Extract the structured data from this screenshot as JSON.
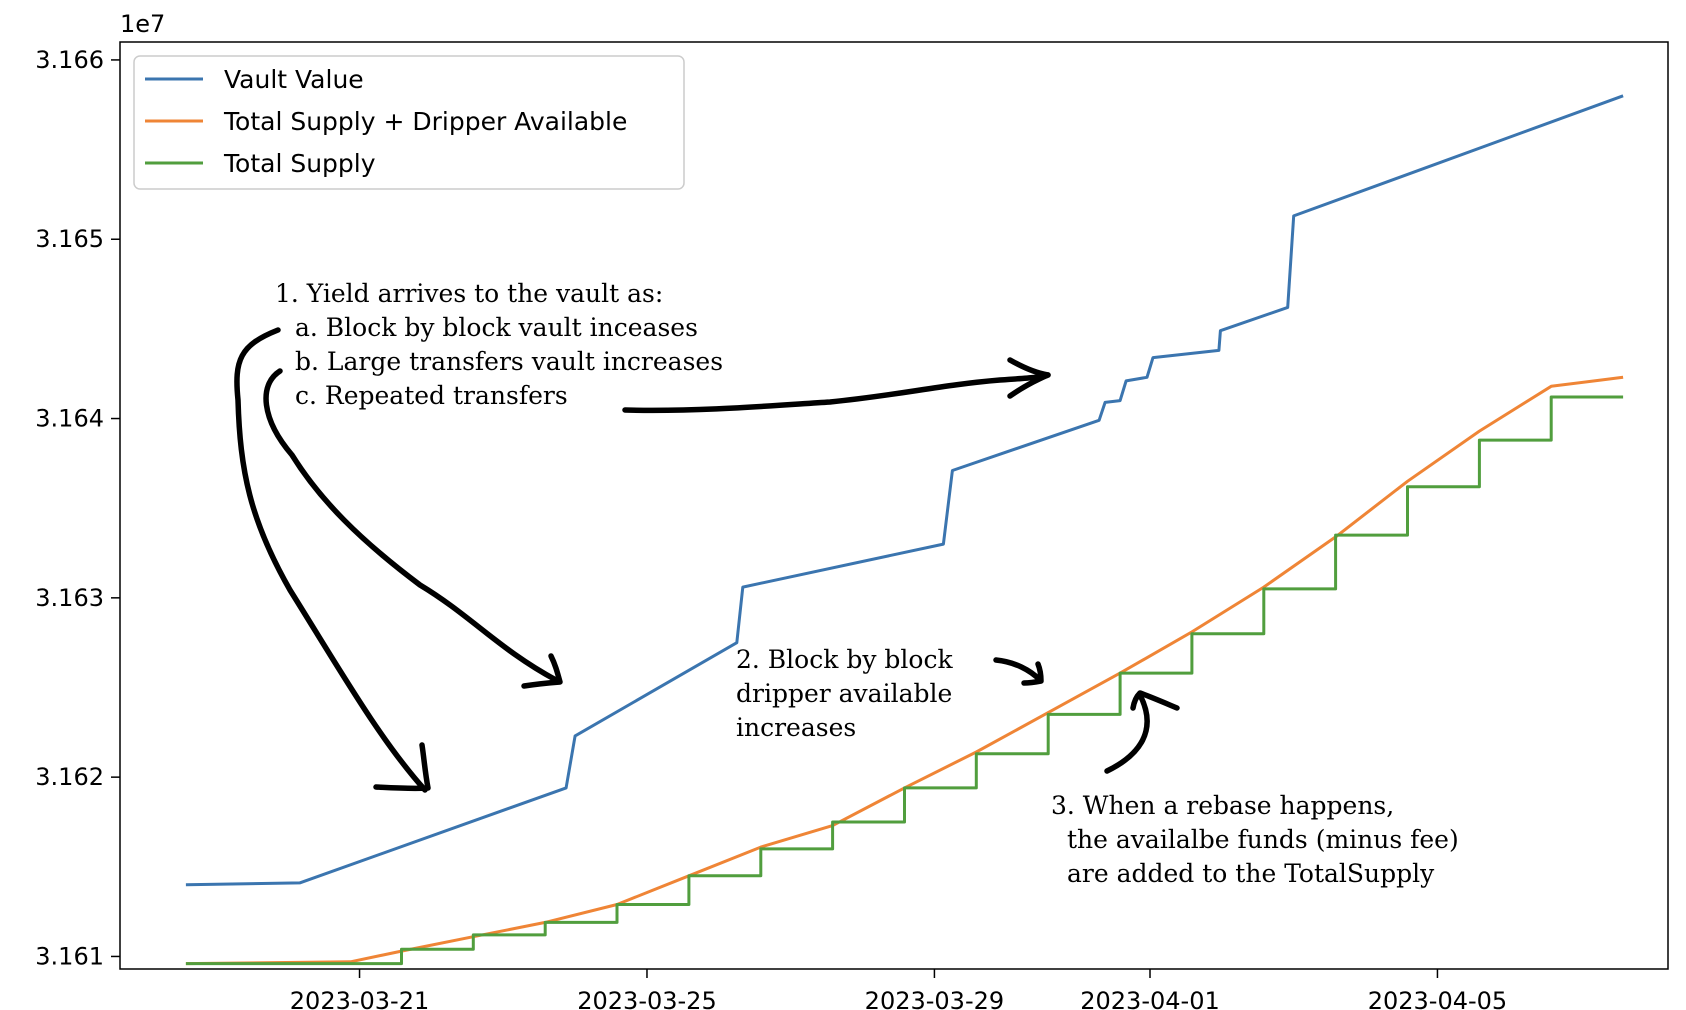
{
  "chart_data": {
    "type": "line",
    "exponent_label": "1e7",
    "x_ticks": [
      "2023-03-21",
      "2023-03-25",
      "2023-03-29",
      "2023-04-01",
      "2023-04-05"
    ],
    "y_ticks": [
      "3.161",
      "3.162",
      "3.163",
      "3.164",
      "3.165",
      "3.166"
    ],
    "xlim": [
      "2023-03-17T16:00",
      "2023-04-08T05:00"
    ],
    "ylim": [
      31609300,
      31661000
    ],
    "grid": false,
    "legend_position": "top-left",
    "colors": {
      "vault": "#3b75af",
      "dripper": "#ef8536",
      "supply": "#519e3e"
    },
    "series": [
      {
        "name": "Vault Value",
        "key": "vault",
        "points": [
          [
            "2023-03-18T14:00",
            31614000
          ],
          [
            "2023-03-20T04:00",
            31614100
          ],
          [
            "2023-03-23T21:00",
            31619400
          ],
          [
            "2023-03-24T00:00",
            31622300
          ],
          [
            "2023-03-26T06:00",
            31627500
          ],
          [
            "2023-03-26T08:00",
            31630600
          ],
          [
            "2023-03-29T03:00",
            31633000
          ],
          [
            "2023-03-29T06:00",
            31637100
          ],
          [
            "2023-03-31T07:00",
            31639900
          ],
          [
            "2023-03-31T09:00",
            31640900
          ],
          [
            "2023-03-31T14:00",
            31641000
          ],
          [
            "2023-03-31T16:00",
            31642100
          ],
          [
            "2023-03-31T23:00",
            31642300
          ],
          [
            "2023-04-01T01:00",
            31643400
          ],
          [
            "2023-04-01T23:00",
            31643800
          ],
          [
            "2023-04-01T23:30",
            31644900
          ],
          [
            "2023-04-02T22:00",
            31646200
          ],
          [
            "2023-04-03T00:00",
            31651300
          ],
          [
            "2023-04-07T14:00",
            31658000
          ]
        ]
      },
      {
        "name": "Total Supply + Dripper Available",
        "key": "dripper",
        "points": [
          [
            "2023-03-18T14:00",
            31609600
          ],
          [
            "2023-03-20T21:00",
            31609700
          ],
          [
            "2023-03-21T14:00",
            31610300
          ],
          [
            "2023-03-22T14:00",
            31611100
          ],
          [
            "2023-03-23T14:00",
            31611900
          ],
          [
            "2023-03-24T14:00",
            31612900
          ],
          [
            "2023-03-25T14:00",
            31614500
          ],
          [
            "2023-03-26T14:00",
            31616100
          ],
          [
            "2023-03-27T14:00",
            31617300
          ],
          [
            "2023-03-28T14:00",
            31619400
          ],
          [
            "2023-03-29T14:00",
            31621400
          ],
          [
            "2023-03-30T14:00",
            31623600
          ],
          [
            "2023-03-31T14:00",
            31625800
          ],
          [
            "2023-04-01T14:00",
            31628100
          ],
          [
            "2023-04-02T14:00",
            31630600
          ],
          [
            "2023-04-03T14:00",
            31633400
          ],
          [
            "2023-04-04T14:00",
            31636500
          ],
          [
            "2023-04-05T14:00",
            31639300
          ],
          [
            "2023-04-06T14:00",
            31641800
          ],
          [
            "2023-04-07T14:00",
            31642300
          ]
        ]
      },
      {
        "name": "Total Supply",
        "key": "supply",
        "steps": [
          [
            "2023-03-18T14:00",
            31609600
          ],
          [
            "2023-03-21T14:00",
            31610400
          ],
          [
            "2023-03-22T14:00",
            31611200
          ],
          [
            "2023-03-23T14:00",
            31611900
          ],
          [
            "2023-03-24T14:00",
            31612900
          ],
          [
            "2023-03-25T14:00",
            31614500
          ],
          [
            "2023-03-26T14:00",
            31616000
          ],
          [
            "2023-03-27T14:00",
            31617500
          ],
          [
            "2023-03-28T14:00",
            31619400
          ],
          [
            "2023-03-29T14:00",
            31621300
          ],
          [
            "2023-03-30T14:00",
            31623500
          ],
          [
            "2023-03-31T14:00",
            31625800
          ],
          [
            "2023-04-01T14:00",
            31628000
          ],
          [
            "2023-04-02T14:00",
            31630500
          ],
          [
            "2023-04-03T14:00",
            31633500
          ],
          [
            "2023-04-04T14:00",
            31636200
          ],
          [
            "2023-04-05T14:00",
            31638800
          ],
          [
            "2023-04-06T14:00",
            31641200
          ]
        ],
        "end": "2023-04-07T14:00"
      }
    ],
    "annotations": [
      {
        "id": "yield-note",
        "lines": [
          "1. Yield arrives to the vault as:",
          "a. Block by block vault inceases",
          "b. Large transfers vault increases",
          "c. Repeated transfers"
        ]
      },
      {
        "id": "dripper-note",
        "lines": [
          "2. Block by block",
          "dripper available",
          "increases"
        ]
      },
      {
        "id": "rebase-note",
        "lines": [
          "3. When a rebase happens,",
          "the availalbe funds (minus fee)",
          "are added to the TotalSupply"
        ]
      }
    ]
  }
}
